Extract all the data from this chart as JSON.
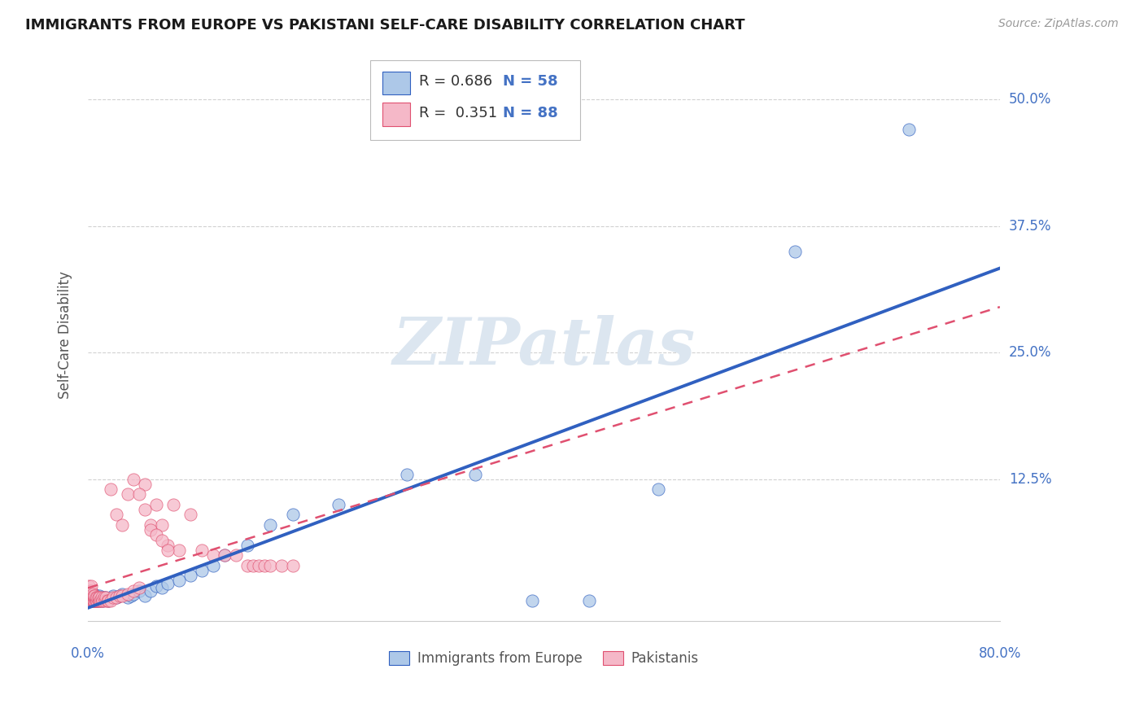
{
  "title": "IMMIGRANTS FROM EUROPE VS PAKISTANI SELF-CARE DISABILITY CORRELATION CHART",
  "source": "Source: ZipAtlas.com",
  "ylabel": "Self-Care Disability",
  "ytick_labels": [
    "12.5%",
    "25.0%",
    "37.5%",
    "50.0%"
  ],
  "ytick_values": [
    0.125,
    0.25,
    0.375,
    0.5
  ],
  "xlim": [
    0,
    0.8
  ],
  "ylim": [
    -0.015,
    0.55
  ],
  "legend_label1": "Immigrants from Europe",
  "legend_label2": "Pakistanis",
  "r1": "0.686",
  "n1": "58",
  "r2": "0.351",
  "n2": "88",
  "color_blue": "#adc8e8",
  "color_pink": "#f5b8c8",
  "line_blue": "#3060c0",
  "line_pink": "#e05070",
  "title_color": "#1a1a1a",
  "axis_label_color": "#4472c4",
  "watermark_color": "#dce6f0",
  "background_color": "#ffffff",
  "grid_color": "#cccccc",
  "blue_x": [
    0.001,
    0.001,
    0.002,
    0.002,
    0.003,
    0.003,
    0.003,
    0.004,
    0.004,
    0.005,
    0.005,
    0.005,
    0.006,
    0.006,
    0.007,
    0.007,
    0.008,
    0.008,
    0.009,
    0.01,
    0.01,
    0.011,
    0.012,
    0.013,
    0.014,
    0.015,
    0.016,
    0.018,
    0.02,
    0.022,
    0.025,
    0.028,
    0.03,
    0.035,
    0.038,
    0.04,
    0.045,
    0.05,
    0.055,
    0.06,
    0.065,
    0.07,
    0.08,
    0.09,
    0.1,
    0.11,
    0.12,
    0.14,
    0.16,
    0.18,
    0.22,
    0.28,
    0.34,
    0.39,
    0.44,
    0.5,
    0.62,
    0.72
  ],
  "blue_y": [
    0.005,
    0.01,
    0.005,
    0.008,
    0.005,
    0.008,
    0.012,
    0.006,
    0.01,
    0.005,
    0.008,
    0.012,
    0.006,
    0.01,
    0.005,
    0.008,
    0.005,
    0.01,
    0.006,
    0.005,
    0.01,
    0.006,
    0.008,
    0.005,
    0.008,
    0.006,
    0.008,
    0.005,
    0.008,
    0.01,
    0.008,
    0.01,
    0.012,
    0.008,
    0.01,
    0.012,
    0.015,
    0.01,
    0.015,
    0.02,
    0.018,
    0.022,
    0.025,
    0.03,
    0.035,
    0.04,
    0.05,
    0.06,
    0.08,
    0.09,
    0.1,
    0.13,
    0.13,
    0.005,
    0.005,
    0.115,
    0.35,
    0.47
  ],
  "pink_x": [
    0.001,
    0.001,
    0.001,
    0.001,
    0.001,
    0.001,
    0.001,
    0.001,
    0.001,
    0.002,
    0.002,
    0.002,
    0.002,
    0.002,
    0.002,
    0.003,
    0.003,
    0.003,
    0.003,
    0.003,
    0.003,
    0.004,
    0.004,
    0.004,
    0.004,
    0.005,
    0.005,
    0.005,
    0.005,
    0.006,
    0.006,
    0.006,
    0.007,
    0.007,
    0.007,
    0.008,
    0.008,
    0.009,
    0.009,
    0.01,
    0.01,
    0.011,
    0.012,
    0.012,
    0.013,
    0.014,
    0.015,
    0.016,
    0.017,
    0.018,
    0.02,
    0.022,
    0.025,
    0.028,
    0.03,
    0.035,
    0.04,
    0.045,
    0.05,
    0.055,
    0.06,
    0.065,
    0.07,
    0.075,
    0.08,
    0.09,
    0.1,
    0.11,
    0.12,
    0.13,
    0.14,
    0.145,
    0.15,
    0.155,
    0.16,
    0.17,
    0.18,
    0.02,
    0.025,
    0.03,
    0.035,
    0.04,
    0.045,
    0.05,
    0.055,
    0.06,
    0.065,
    0.07
  ],
  "pink_y": [
    0.005,
    0.005,
    0.005,
    0.008,
    0.008,
    0.01,
    0.012,
    0.015,
    0.02,
    0.005,
    0.005,
    0.008,
    0.01,
    0.012,
    0.015,
    0.005,
    0.005,
    0.008,
    0.01,
    0.015,
    0.02,
    0.005,
    0.005,
    0.008,
    0.012,
    0.005,
    0.005,
    0.008,
    0.01,
    0.005,
    0.008,
    0.01,
    0.005,
    0.005,
    0.008,
    0.005,
    0.008,
    0.005,
    0.008,
    0.005,
    0.008,
    0.005,
    0.005,
    0.008,
    0.005,
    0.008,
    0.005,
    0.008,
    0.005,
    0.005,
    0.005,
    0.008,
    0.008,
    0.01,
    0.01,
    0.012,
    0.015,
    0.018,
    0.12,
    0.08,
    0.1,
    0.08,
    0.06,
    0.1,
    0.055,
    0.09,
    0.055,
    0.05,
    0.05,
    0.05,
    0.04,
    0.04,
    0.04,
    0.04,
    0.04,
    0.04,
    0.04,
    0.115,
    0.09,
    0.08,
    0.11,
    0.125,
    0.11,
    0.095,
    0.075,
    0.07,
    0.065,
    0.055
  ]
}
